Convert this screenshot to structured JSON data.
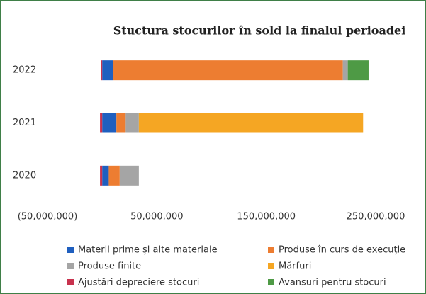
{
  "chart_data": {
    "type": "stacked_barh",
    "title": "Stuctura stocurilor în sold la finalul perioadei",
    "categories": [
      "2020",
      "2021",
      "2022"
    ],
    "series": [
      {
        "name": "Materii prime și alte materiale",
        "color": "#1f5fbf",
        "values": [
          6000000,
          13000000,
          10000000
        ]
      },
      {
        "name": "Produse în curs de execuție",
        "color": "#ed7d31",
        "values": [
          10000000,
          8500000,
          210000000
        ]
      },
      {
        "name": "Produse finite",
        "color": "#a5a5a5",
        "values": [
          17500000,
          12000000,
          4500000
        ]
      },
      {
        "name": "Mărfuri",
        "color": "#f5a623",
        "values": [
          0,
          205000000,
          0
        ]
      },
      {
        "name": "Ajustări depreciere stocuri",
        "color": "#c8324e",
        "values": [
          -2000000,
          -2000000,
          -1000000
        ]
      },
      {
        "name": "Avansuri pentru stocuri",
        "color": "#4e9a45",
        "values": [
          0,
          0,
          19000000
        ]
      }
    ],
    "xlim": [
      -50000000,
      250000000
    ],
    "xticks": [
      {
        "value": -50000000,
        "label": "(50,000,000)"
      },
      {
        "value": 50000000,
        "label": "50,000,000"
      },
      {
        "value": 150000000,
        "label": "150,000,000"
      },
      {
        "value": 250000000,
        "label": "250,000,000"
      }
    ],
    "grid": false
  }
}
